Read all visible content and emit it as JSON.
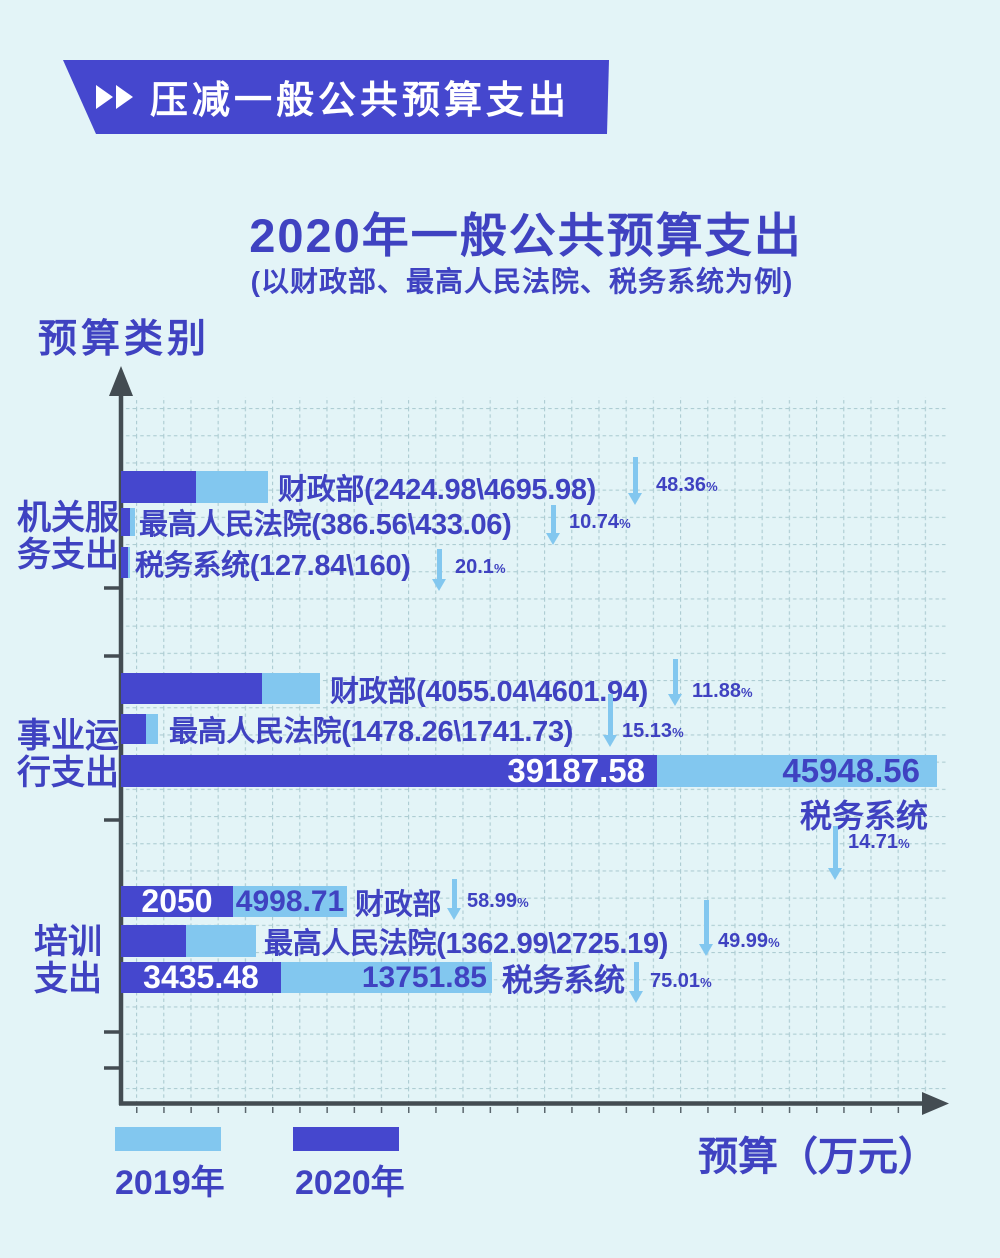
{
  "banner": {
    "label": "压减一般公共预算支出",
    "icon": "fast-forward-icon"
  },
  "title": "2020年一般公共预算支出",
  "subtitle": "(以财政部、最高人民法院、税务系统为例)",
  "percent_sign": "%",
  "axes": {
    "y_title": "预算类别",
    "x_title": "预算（万元）"
  },
  "legend": [
    {
      "label": "2019年",
      "color": "#82c7ef"
    },
    {
      "label": "2020年",
      "color": "#4547ce"
    }
  ],
  "colors": {
    "background": "#e3f4f7",
    "bar_2020": "#4547ce",
    "bar_2019": "#82c7ef",
    "text": "#3f42c1",
    "axis": "#434c52",
    "grid": "#aecdd3"
  },
  "chart_data": {
    "type": "bar",
    "orientation": "horizontal",
    "unit": "万元",
    "series_names": [
      "2020年",
      "2019年"
    ],
    "x_axis_label": "预算（万元）",
    "y_axis_label": "预算类别",
    "grid": "dashed squares",
    "legend_position": "bottom-left",
    "groups": [
      {
        "category": "机关服务支出",
        "category_lines": [
          "机关服",
          "务支出"
        ],
        "bars": [
          {
            "entity": "财政部",
            "v2020": 2424.98,
            "v2019": 4695.98,
            "decrease_pct": 48.36,
            "right_label": "财政部(2424.98\\4695.98)",
            "pct": "48.36",
            "px": {
              "dark": 75,
              "light": 72
            }
          },
          {
            "entity": "最高人民法院",
            "v2020": 386.56,
            "v2019": 433.06,
            "decrease_pct": 10.74,
            "right_label": "最高人民法院(386.56\\433.06)",
            "pct": "10.74",
            "px": {
              "dark": 9,
              "light": 5
            }
          },
          {
            "entity": "税务系统",
            "v2020": 127.84,
            "v2019": 160,
            "decrease_pct": 20.1,
            "right_label": "税务系统(127.84\\160)",
            "pct": "20.1",
            "px": {
              "dark": 7,
              "light": 2
            }
          }
        ]
      },
      {
        "category": "事业运行支出",
        "category_lines": [
          "事业运",
          "行支出"
        ],
        "bars": [
          {
            "entity": "财政部",
            "v2020": 4055.04,
            "v2019": 4601.94,
            "decrease_pct": 11.88,
            "right_label": "财政部(4055.04\\4601.94)",
            "pct": "11.88",
            "px": {
              "dark": 141,
              "light": 58
            }
          },
          {
            "entity": "最高人民法院",
            "v2020": 1478.26,
            "v2019": 1741.73,
            "decrease_pct": 15.13,
            "right_label": "最高人民法院(1478.26\\1741.73)",
            "pct": "15.13",
            "px": {
              "dark": 25,
              "light": 12
            }
          },
          {
            "entity": "税务系统",
            "v2020": 39187.58,
            "v2019": 45948.56,
            "decrease_pct": 14.71,
            "dark_text": "39187.58",
            "light_text": "45948.56",
            "below_label": "税务系统",
            "pct": "14.71",
            "px": {
              "dark": 536,
              "light": 280
            }
          }
        ]
      },
      {
        "category": "培训支出",
        "category_lines": [
          "培训",
          "支出"
        ],
        "bars": [
          {
            "entity": "财政部",
            "v2020": 2050,
            "v2019": 4998.71,
            "decrease_pct": 58.99,
            "dark_text": "2050",
            "light_text": "4998.71",
            "right_label": "财政部",
            "pct": "58.99",
            "px": {
              "dark": 112,
              "light": 114
            }
          },
          {
            "entity": "最高人民法院",
            "v2020": 1362.99,
            "v2019": 2725.19,
            "decrease_pct": 49.99,
            "right_label": "最高人民法院(1362.99\\2725.19)",
            "pct": "49.99",
            "px": {
              "dark": 65,
              "light": 70
            }
          },
          {
            "entity": "税务系统",
            "v2020": 3435.48,
            "v2019": 13751.85,
            "decrease_pct": 75.01,
            "dark_text": "3435.48",
            "light_text": "13751.85",
            "right_label": "税务系统",
            "pct": "75.01",
            "px": {
              "dark": 160,
              "light": 211
            }
          }
        ]
      }
    ]
  }
}
